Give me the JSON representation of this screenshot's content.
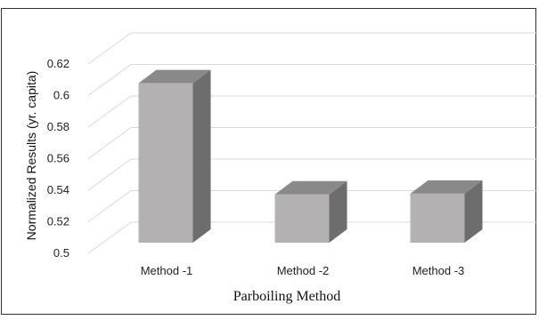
{
  "chart_data": {
    "type": "bar",
    "style": "3d",
    "title": "",
    "xlabel": "Parboiling Method",
    "ylabel": "Normalized Results (yr. capita)",
    "categories": [
      "Method -1",
      "Method -2",
      "Method -3"
    ],
    "values": [
      0.6078,
      0.5373,
      0.5378
    ],
    "ylim": [
      0.5,
      0.62
    ],
    "yticks": [
      "0.5",
      "0.52",
      "0.54",
      "0.56",
      "0.58",
      "0.6",
      "0.62"
    ],
    "grid": true,
    "legend": "none",
    "colors": {
      "bar_front": "#b3b1b1",
      "bar_top": "#8a8888",
      "bar_side": "#6e6d6d",
      "grid": "#d9d9d9",
      "frame": "#333333"
    }
  }
}
